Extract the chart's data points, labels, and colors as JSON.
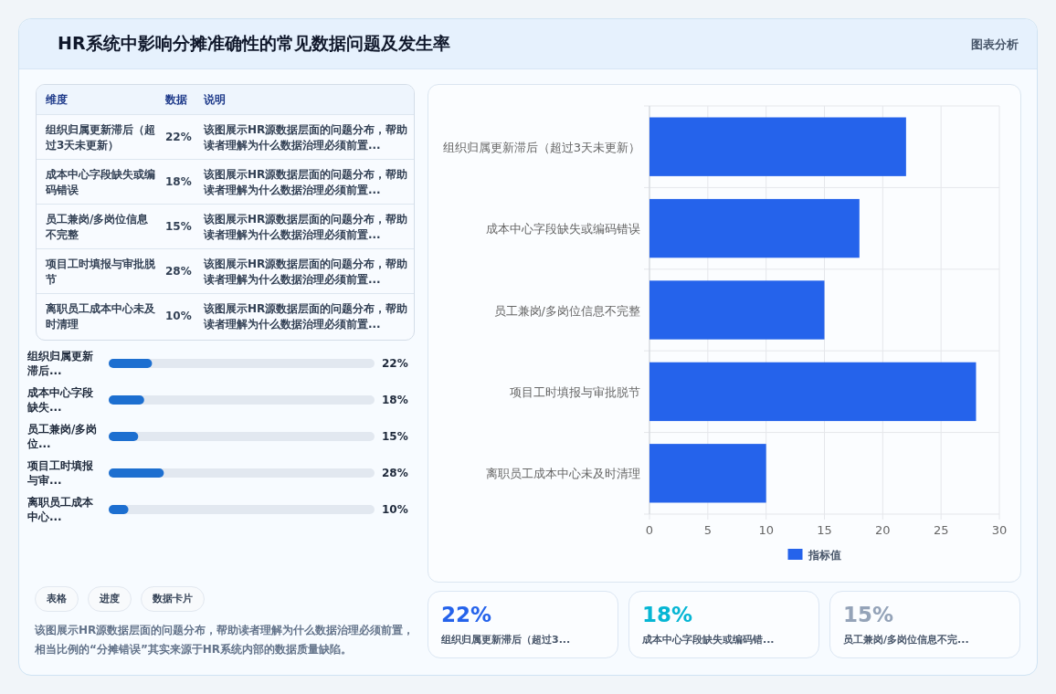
{
  "chart_data": [
    {
      "type": "other",
      "title": "HR系统中影响分摊准确性的常见数据问题及发生率",
      "annotations": [
        "图表分析"
      ]
    },
    {
      "type": "other",
      "annotations": [
        "维度",
        "数据",
        "说明",
        "组织归属更新滞后（超过3天未更新）",
        "22%",
        "该图展示HR源数据层面的问题分布，帮助读者理解为什么数据治理必须前置...",
        "成本中心字段缺失或编码错误",
        "18%",
        "该图展示HR源数据层面的问题分布，帮助读者理解为什么数据治理必须前置...",
        "员工兼岗/多岗位信息不完整",
        "15%",
        "该图展示HR源数据层面的问题分布，帮助读者理解为什么数据治理必须前置...",
        "项目工时填报与审批脱节",
        "28%",
        "该图展示HR源数据层面的问题分布，帮助读者理解为什么数据治理必须前置...",
        "离职员工成本中心未及时清理",
        "10%",
        "该图展示HR源数据层面的问题分布，帮助读者理解为什么数据治理必须前置..."
      ]
    },
    {
      "type": "bar",
      "orientation": "horizontal",
      "categories": [
        "组织归属更新滞后...",
        "成本中心字段缺失...",
        "员工兼岗/多岗位...",
        "项目工时填报与审...",
        "离职员工成本中心..."
      ],
      "values": [
        22,
        18,
        15,
        28,
        10
      ],
      "value_labels": [
        "22%",
        "18%",
        "15%",
        "28%",
        "10%"
      ],
      "xlim": [
        0,
        135
      ],
      "color": "#1d6fd0"
    },
    {
      "type": "other",
      "annotations": [
        "表格",
        "进度",
        "数据卡片",
        "该图展示HR源数据层面的问题分布，帮助读者理解为什么数据治理必须前置，相当比例的“分摊错误”其实来源于HR系统内部的数据质量缺陷。"
      ]
    },
    {
      "type": "bar",
      "orientation": "horizontal",
      "categories": [
        "组织归属更新滞后（超过3天未更新）",
        "成本中心字段缺失或编码错误",
        "员工兼岗/多岗位信息不完整",
        "项目工时填报与审批脱节",
        "离职员工成本中心未及时清理"
      ],
      "series": [
        {
          "name": "指标值",
          "color": "#2563eb",
          "values": [
            22,
            18,
            15,
            28,
            10
          ]
        }
      ],
      "xlim": [
        0,
        30
      ],
      "xticks": [
        0,
        5,
        10,
        15,
        20,
        25,
        30
      ],
      "grid": true,
      "legend": "bottom"
    },
    {
      "type": "other",
      "annotations": [
        "22%",
        "组织归属更新滞后（超过3...",
        "18%",
        "成本中心字段缺失或编码错...",
        "15%",
        "员工兼岗/多岗位信息不完..."
      ],
      "colors": [
        "#2563eb",
        "#06b6d4",
        "#94a3b8"
      ]
    }
  ]
}
